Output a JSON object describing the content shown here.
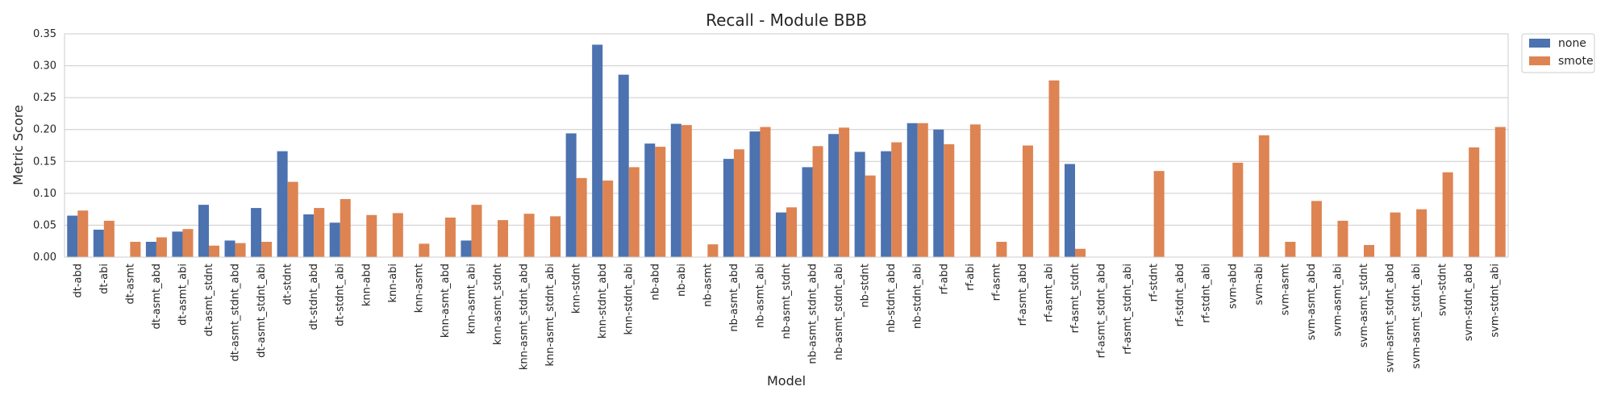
{
  "chart_data": {
    "type": "bar",
    "title": "Recall - Module BBB",
    "xlabel": "Model",
    "ylabel": "Metric Score",
    "ylim": [
      0,
      0.35
    ],
    "yticks": [
      0.0,
      0.05,
      0.1,
      0.15,
      0.2,
      0.25,
      0.3,
      0.35
    ],
    "ytick_labels": [
      "0.00",
      "0.05",
      "0.10",
      "0.15",
      "0.20",
      "0.25",
      "0.30",
      "0.35"
    ],
    "grid": true,
    "legend_position": "outside-top-right",
    "categories": [
      "dt-abd",
      "dt-abi",
      "dt-asmt",
      "dt-asmt_abd",
      "dt-asmt_abi",
      "dt-asmt_stdnt",
      "dt-asmt_stdnt_abd",
      "dt-asmt_stdnt_abi",
      "dt-stdnt",
      "dt-stdnt_abd",
      "dt-stdnt_abi",
      "knn-abd",
      "knn-abi",
      "knn-asmt",
      "knn-asmt_abd",
      "knn-asmt_abi",
      "knn-asmt_stdnt",
      "knn-asmt_stdnt_abd",
      "knn-asmt_stdnt_abi",
      "knn-stdnt",
      "knn-stdnt_abd",
      "knn-stdnt_abi",
      "nb-abd",
      "nb-abi",
      "nb-asmt",
      "nb-asmt_abd",
      "nb-asmt_abi",
      "nb-asmt_stdnt",
      "nb-asmt_stdnt_abd",
      "nb-asmt_stdnt_abi",
      "nb-stdnt",
      "nb-stdnt_abd",
      "nb-stdnt_abi",
      "rf-abd",
      "rf-abi",
      "rf-asmt",
      "rf-asmt_abd",
      "rf-asmt_abi",
      "rf-asmt_stdnt",
      "rf-asmt_stdnt_abd",
      "rf-asmt_stdnt_abi",
      "rf-stdnt",
      "rf-stdnt_abd",
      "rf-stdnt_abi",
      "svm-abd",
      "svm-abi",
      "svm-asmt",
      "svm-asmt_abd",
      "svm-asmt_abi",
      "svm-asmt_stdnt",
      "svm-asmt_stdnt_abd",
      "svm-asmt_stdnt_abi",
      "svm-stdnt",
      "svm-stdnt_abd",
      "svm-stdnt_abi"
    ],
    "series": [
      {
        "name": "none",
        "color": "#4c72b0",
        "values": [
          0.065,
          0.043,
          0.0,
          0.024,
          0.04,
          0.082,
          0.026,
          0.077,
          0.166,
          0.067,
          0.054,
          0.0,
          0.0,
          0.0,
          0.0,
          0.026,
          0.0,
          0.0,
          0.0,
          0.194,
          0.333,
          0.286,
          0.178,
          0.209,
          0.0,
          0.154,
          0.197,
          0.07,
          0.141,
          0.193,
          0.165,
          0.166,
          0.21,
          0.2,
          0.0,
          0.0,
          0.0,
          0.0,
          0.146,
          0.0,
          0.0,
          0.0,
          0.0,
          0.0,
          0.0,
          0.0,
          0.0,
          0.0,
          0.0,
          0.0,
          0.0,
          0.0,
          0.0,
          0.0,
          0.0
        ]
      },
      {
        "name": "smote",
        "color": "#dd8452",
        "values": [
          0.073,
          0.057,
          0.024,
          0.031,
          0.044,
          0.018,
          0.022,
          0.024,
          0.118,
          0.077,
          0.091,
          0.066,
          0.069,
          0.021,
          0.062,
          0.082,
          0.058,
          0.068,
          0.064,
          0.124,
          0.12,
          0.141,
          0.173,
          0.207,
          0.02,
          0.169,
          0.204,
          0.078,
          0.174,
          0.203,
          0.128,
          0.18,
          0.21,
          0.177,
          0.208,
          0.024,
          0.175,
          0.277,
          0.013,
          0.0,
          0.0,
          0.135,
          0.0,
          0.0,
          0.148,
          0.191,
          0.024,
          0.088,
          0.057,
          0.019,
          0.07,
          0.075,
          0.133,
          0.172,
          0.204
        ]
      }
    ]
  }
}
